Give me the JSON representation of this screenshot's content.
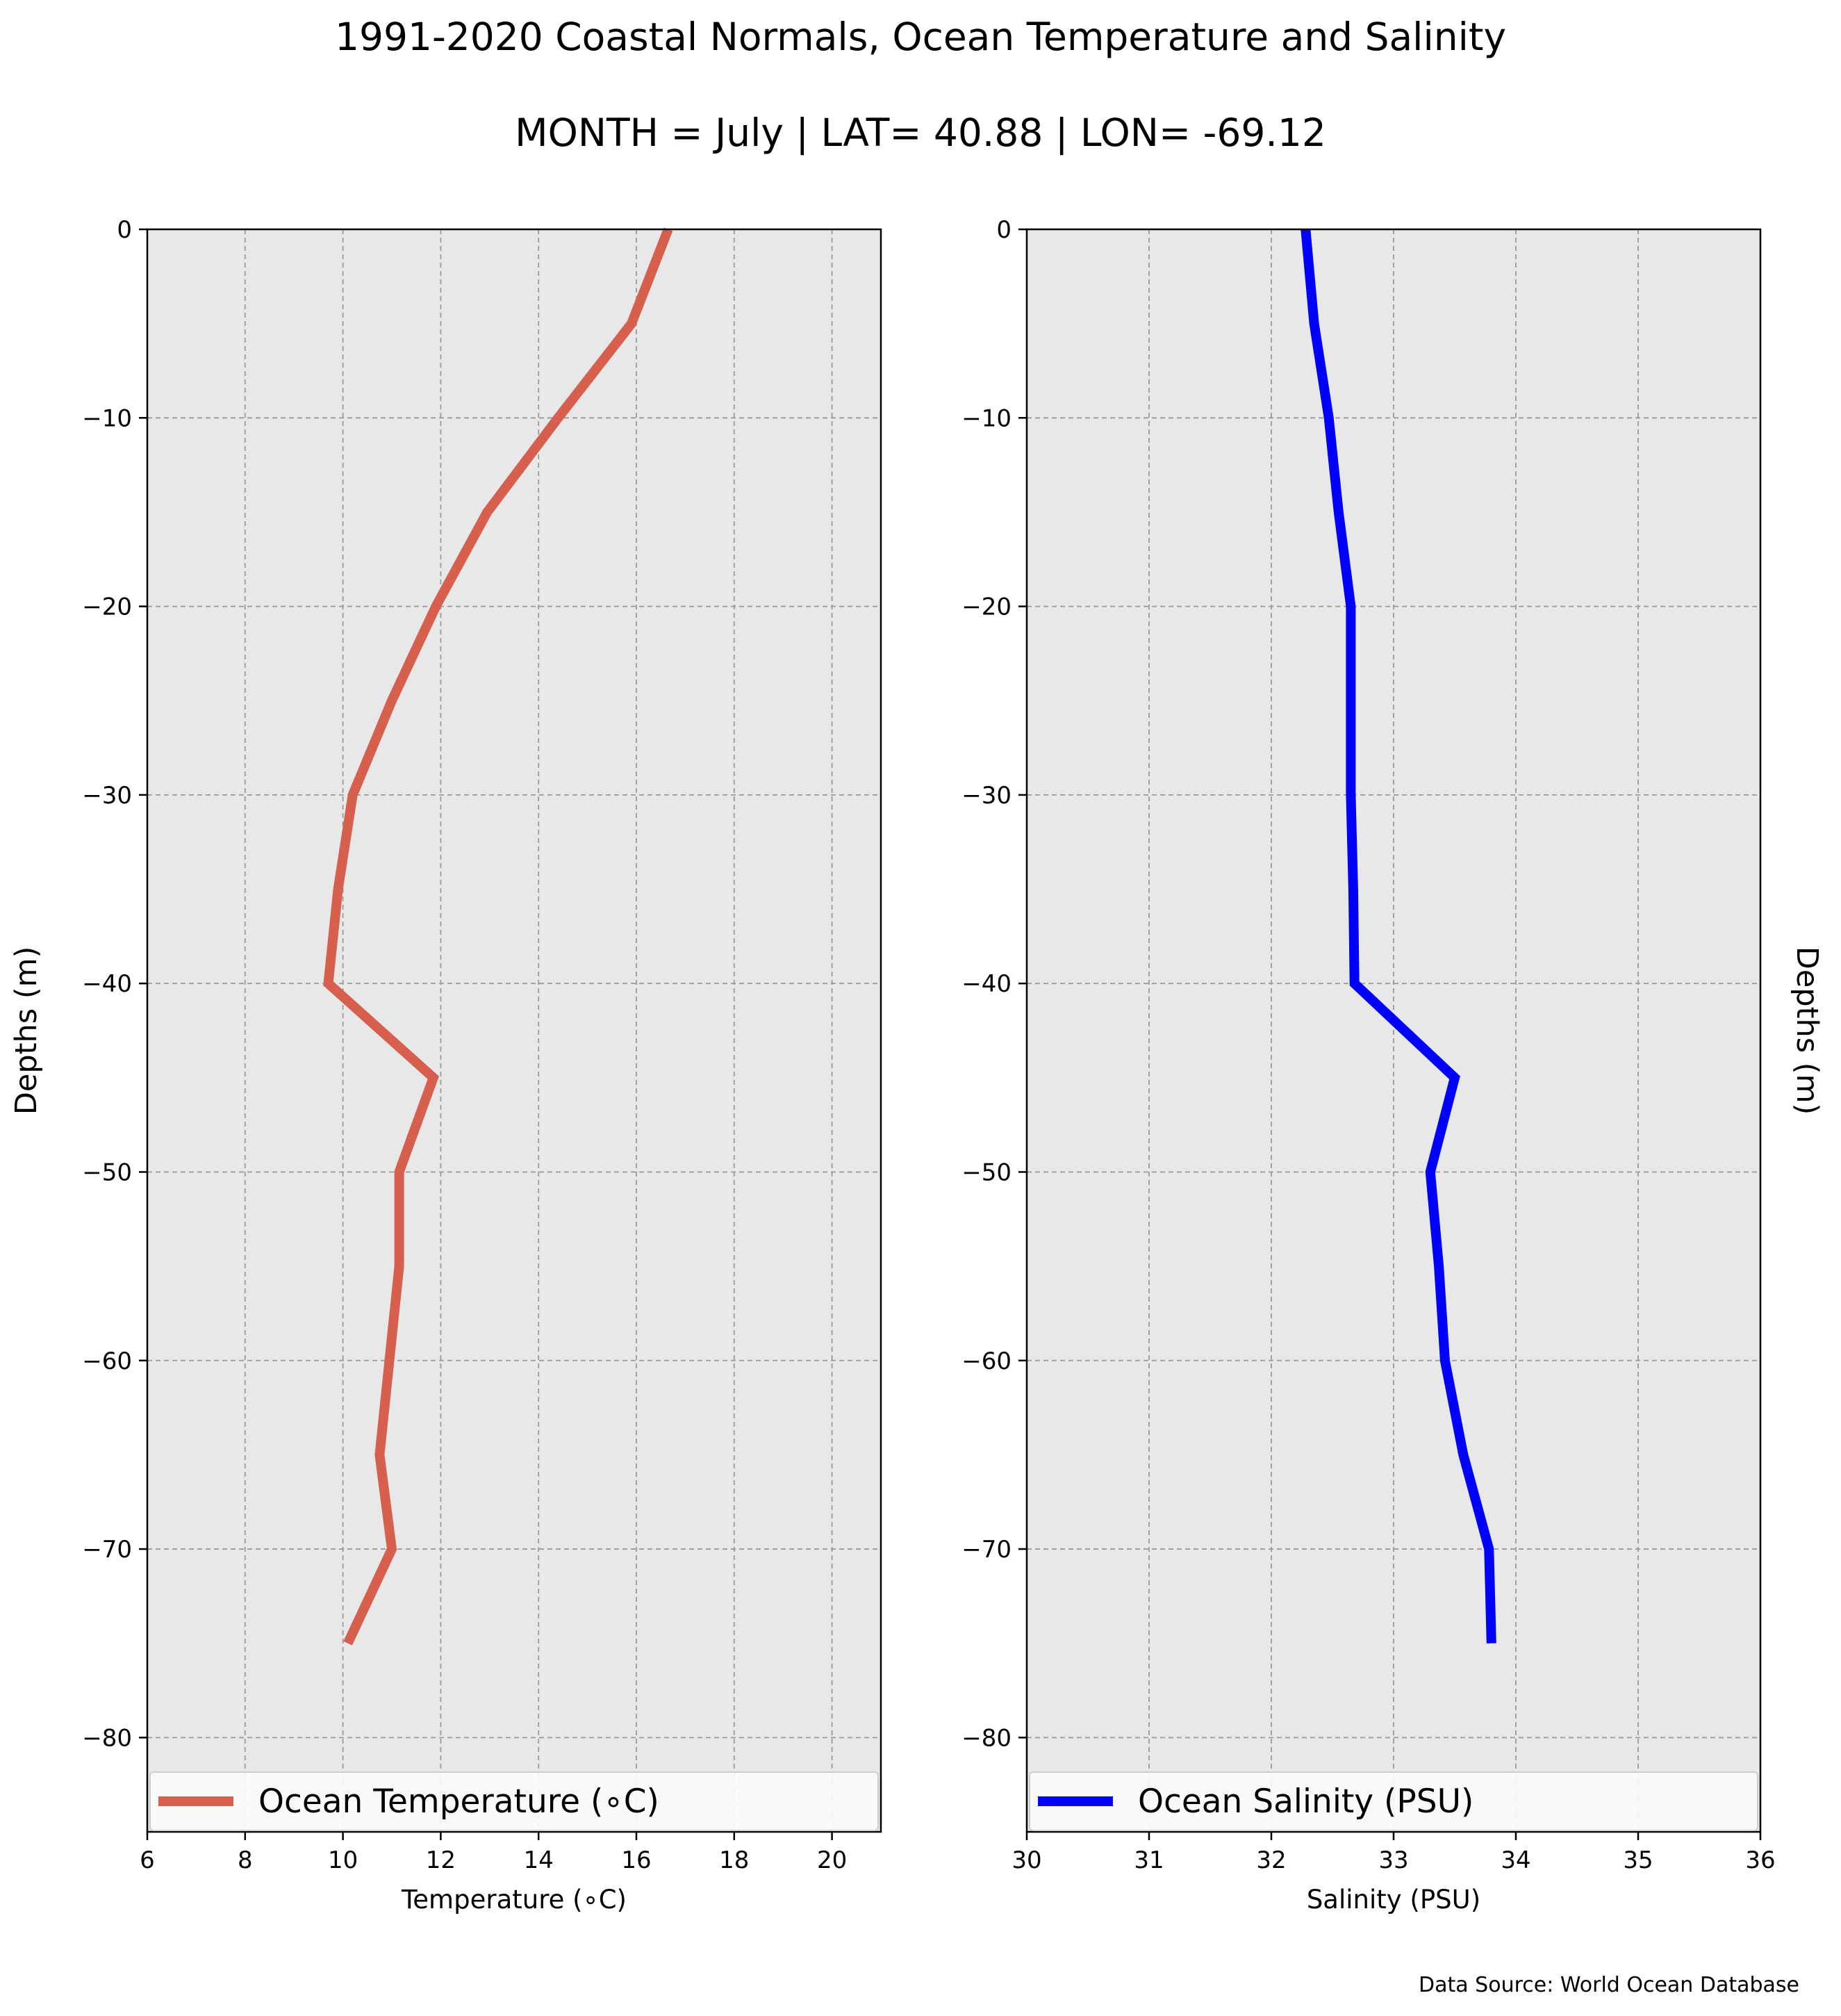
{
  "figure": {
    "title": "1991-2020 Coastal Normals, Ocean Temperature and Salinity",
    "subtitle": "MONTH = July | LAT= 40.88 | LON= -69.12",
    "source_note": "Data Source: World Ocean Database"
  },
  "chart_data": [
    {
      "type": "line",
      "xlabel": "Temperature (∘C)",
      "ylabel": "Depths (m)",
      "ylabel_side": "left",
      "xlim": [
        6,
        21
      ],
      "ylim": [
        -85,
        0
      ],
      "xticks": [
        6,
        8,
        10,
        12,
        14,
        16,
        18,
        20
      ],
      "xtick_labels": [
        "6",
        "8",
        "10",
        "12",
        "14",
        "16",
        "18",
        "20"
      ],
      "yticks": [
        0,
        -10,
        -20,
        -30,
        -40,
        -50,
        -60,
        -70,
        -80
      ],
      "ytick_labels": [
        "0",
        "−10",
        "−20",
        "−30",
        "−40",
        "−50",
        "−60",
        "−70",
        "−80"
      ],
      "grid": true,
      "legend_position": "bottom",
      "series": [
        {
          "name": "Ocean Temperature (∘C)",
          "color": "#d65f4d",
          "x": [
            16.65,
            15.9,
            14.4,
            12.95,
            11.9,
            11.0,
            10.2,
            9.9,
            9.7,
            11.85,
            11.15,
            11.15,
            10.95,
            10.75,
            11.0,
            10.1
          ],
          "y": [
            0,
            -5,
            -10,
            -15,
            -20,
            -25,
            -30,
            -35,
            -40,
            -45,
            -50,
            -55,
            -60,
            -65,
            -70,
            -75
          ]
        }
      ]
    },
    {
      "type": "line",
      "xlabel": "Salinity (PSU)",
      "ylabel": "Depths (m)",
      "ylabel_side": "right",
      "xlim": [
        30,
        36
      ],
      "ylim": [
        -85,
        0
      ],
      "xticks": [
        30,
        31,
        32,
        33,
        34,
        35,
        36
      ],
      "xtick_labels": [
        "30",
        "31",
        "32",
        "33",
        "34",
        "35",
        "36"
      ],
      "yticks": [
        0,
        -10,
        -20,
        -30,
        -40,
        -50,
        -60,
        -70,
        -80
      ],
      "ytick_labels": [
        "0",
        "−10",
        "−20",
        "−30",
        "−40",
        "−50",
        "−60",
        "−70",
        "−80"
      ],
      "grid": true,
      "legend_position": "bottom",
      "series": [
        {
          "name": "Ocean Salinity (PSU)",
          "color": "#0000ff",
          "x": [
            32.28,
            32.35,
            32.47,
            32.55,
            32.65,
            32.65,
            32.65,
            32.67,
            32.68,
            33.5,
            33.3,
            33.37,
            33.42,
            33.57,
            33.78,
            33.8
          ],
          "y": [
            0,
            -5,
            -10,
            -15,
            -20,
            -25,
            -30,
            -35,
            -40,
            -45,
            -50,
            -55,
            -60,
            -65,
            -70,
            -75
          ]
        }
      ]
    }
  ]
}
